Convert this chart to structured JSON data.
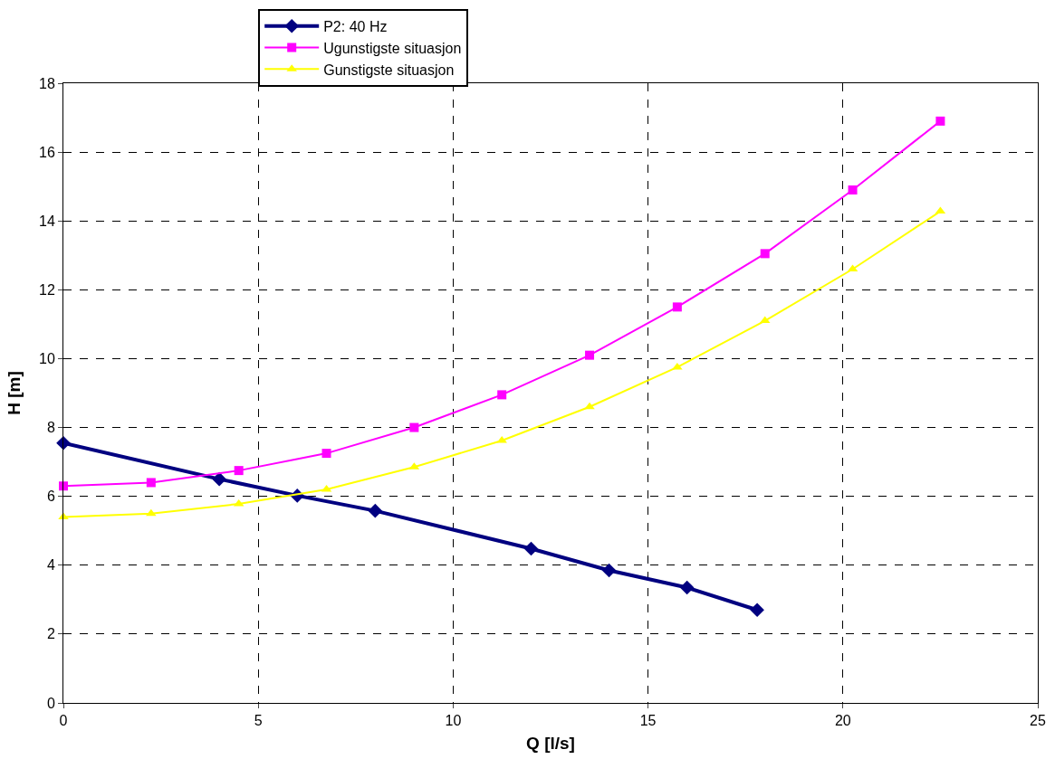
{
  "chart_data": {
    "type": "line",
    "xlabel": "Q [l/s]",
    "ylabel": "H [m]",
    "xlim": [
      0,
      25
    ],
    "xticks": [
      0,
      5,
      10,
      15,
      20,
      25
    ],
    "ylim": [
      0,
      18
    ],
    "yticks": [
      0,
      2,
      4,
      6,
      8,
      10,
      12,
      14,
      16,
      18
    ],
    "grid": true,
    "legend": "top",
    "series": [
      {
        "name": "P2: 40 Hz",
        "color": "#000080",
        "marker": "diamond",
        "x": [
          0,
          4,
          6,
          8,
          12,
          14,
          16,
          17.8
        ],
        "values": [
          7.55,
          6.5,
          6.02,
          5.58,
          4.48,
          3.85,
          3.35,
          2.7
        ]
      },
      {
        "name": "Ugunstigste situasjon",
        "color": "#ff00ff",
        "marker": "square",
        "x": [
          0,
          2.25,
          4.5,
          6.75,
          9,
          11.25,
          13.5,
          15.75,
          18,
          20.25,
          22.5
        ],
        "values": [
          6.3,
          6.4,
          6.75,
          7.25,
          8.0,
          8.95,
          10.1,
          11.5,
          13.05,
          14.9,
          16.9
        ]
      },
      {
        "name": "Gunstigste situasjon",
        "color": "#ffff00",
        "marker": "triangle",
        "x": [
          0,
          2.25,
          4.5,
          6.75,
          9,
          11.25,
          13.5,
          15.75,
          18,
          20.25,
          22.5
        ],
        "values": [
          5.4,
          5.5,
          5.78,
          6.2,
          6.85,
          7.62,
          8.6,
          9.75,
          11.1,
          12.6,
          14.28
        ]
      }
    ]
  }
}
